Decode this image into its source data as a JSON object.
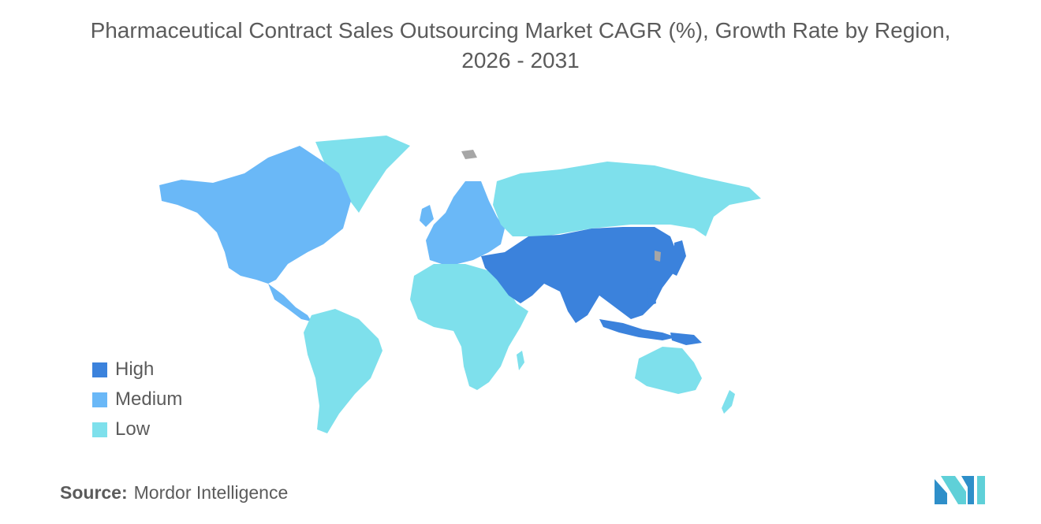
{
  "title": {
    "line1": "Pharmaceutical Contract Sales Outsourcing Market CAGR (%), Growth Rate by Region,",
    "line2": "2026 - 2031"
  },
  "legend": [
    {
      "label": "High",
      "color": "#3b82dc"
    },
    {
      "label": "Medium",
      "color": "#6ab8f7"
    },
    {
      "label": "Low",
      "color": "#7ee0ec"
    }
  ],
  "regions": {
    "north_america": "Medium",
    "europe": "Medium",
    "asia_pacific": "High",
    "middle_east": "High",
    "south_america": "Low",
    "africa": "Low",
    "russia": "Low",
    "greenland": "Low",
    "australia": "Low"
  },
  "colors": {
    "no_data": "#a6a6a6",
    "text": "#5b5b5b",
    "logo": "#2e8fc9",
    "logo_accent": "#5fd0d8"
  },
  "source": {
    "label": "Source:",
    "text": "Mordor Intelligence"
  }
}
